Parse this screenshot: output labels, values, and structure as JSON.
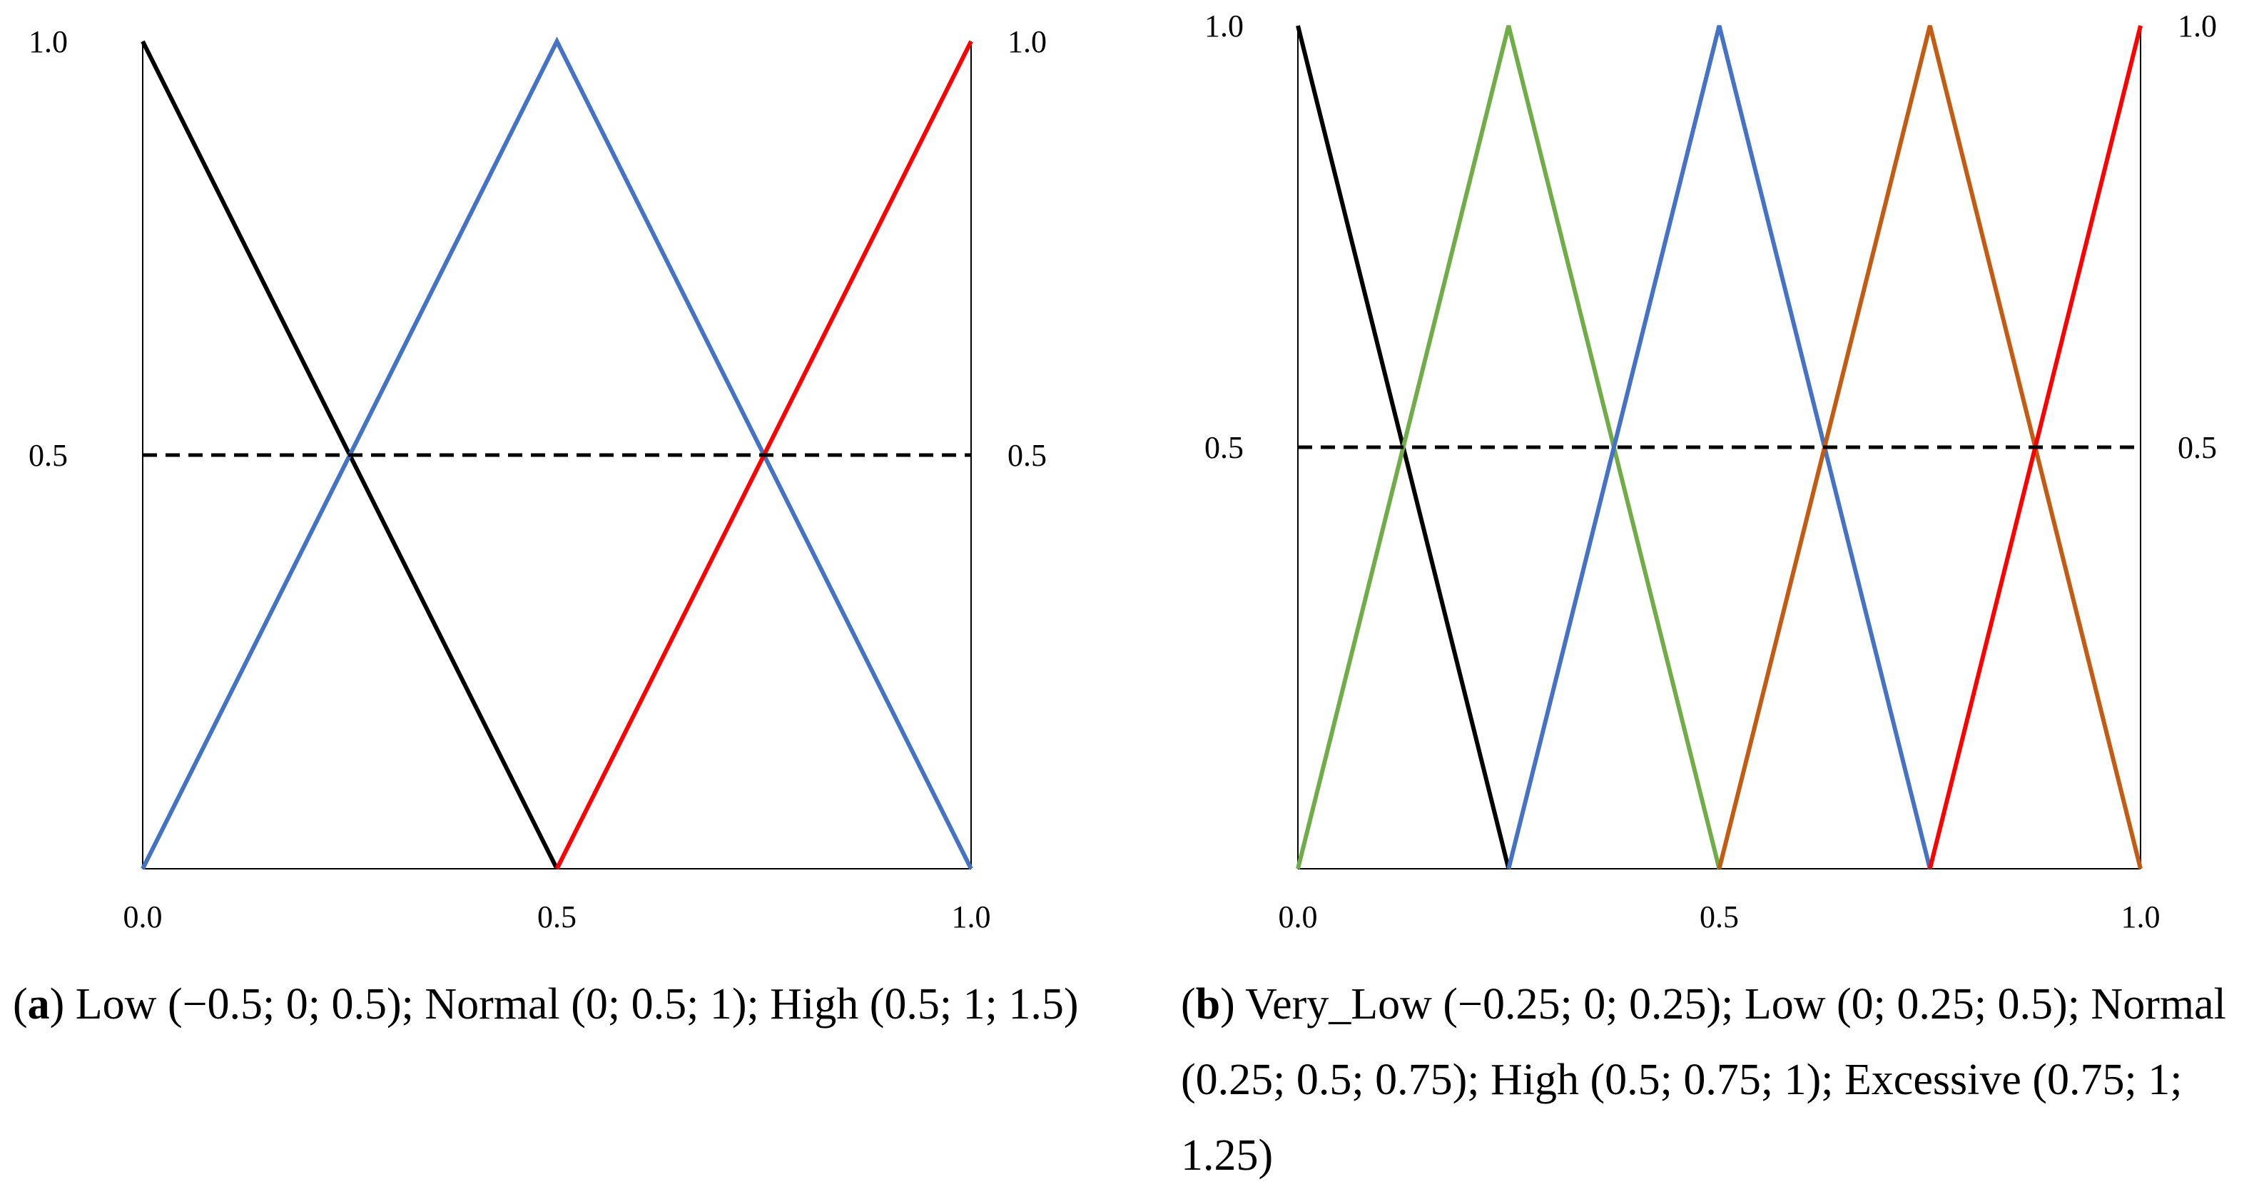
{
  "chart_data": [
    {
      "panel": "a",
      "type": "line",
      "x": [
        0.0,
        0.5,
        1.0
      ],
      "xlim": [
        0,
        1
      ],
      "ylim": [
        0,
        1
      ],
      "x_tick_labels": [
        "0.0",
        "0.5",
        "1.0"
      ],
      "y_tick_labels_left": [
        "1.0",
        "0.5"
      ],
      "y_tick_labels_right": [
        "1.0",
        "0.5"
      ],
      "reference_line": {
        "y": 0.5,
        "style": "dashed",
        "color": "#000000"
      },
      "series": [
        {
          "name": "Low",
          "params": [
            -0.5,
            0,
            0.5
          ],
          "color": "#000000",
          "points": [
            [
              0,
              1
            ],
            [
              0.5,
              0
            ]
          ]
        },
        {
          "name": "Normal",
          "params": [
            0,
            0.5,
            1
          ],
          "color": "#4472C4",
          "points": [
            [
              0,
              0
            ],
            [
              0.5,
              1
            ],
            [
              1,
              0
            ]
          ]
        },
        {
          "name": "High",
          "params": [
            0.5,
            1,
            1.5
          ],
          "color": "#FF0000",
          "points": [
            [
              0.5,
              0
            ],
            [
              1,
              1
            ]
          ]
        }
      ],
      "caption_letter": "a",
      "caption_text": ") Low (−0.5; 0; 0.5); Normal (0; 0.5; 1); High (0.5; 1; 1.5)"
    },
    {
      "panel": "b",
      "type": "line",
      "x": [
        0.0,
        0.5,
        1.0
      ],
      "xlim": [
        0,
        1
      ],
      "ylim": [
        0,
        1
      ],
      "x_tick_labels": [
        "0.0",
        "0.5",
        "1.0"
      ],
      "y_tick_labels_left": [
        "1.0",
        "0.5"
      ],
      "y_tick_labels_right": [
        "1.0",
        "0.5"
      ],
      "reference_line": {
        "y": 0.5,
        "style": "dashed",
        "color": "#000000"
      },
      "series": [
        {
          "name": "Very_Low",
          "params": [
            -0.25,
            0,
            0.25
          ],
          "color": "#000000",
          "points": [
            [
              0,
              1
            ],
            [
              0.25,
              0
            ]
          ]
        },
        {
          "name": "Low",
          "params": [
            0,
            0.25,
            0.5
          ],
          "color": "#70AD47",
          "points": [
            [
              0,
              0
            ],
            [
              0.25,
              1
            ],
            [
              0.5,
              0
            ]
          ]
        },
        {
          "name": "Normal",
          "params": [
            0.25,
            0.5,
            0.75
          ],
          "color": "#4472C4",
          "points": [
            [
              0.25,
              0
            ],
            [
              0.5,
              1
            ],
            [
              0.75,
              0
            ]
          ]
        },
        {
          "name": "High",
          "params": [
            0.5,
            0.75,
            1
          ],
          "color": "#C55A11",
          "points": [
            [
              0.5,
              0
            ],
            [
              0.75,
              1
            ],
            [
              1,
              0
            ]
          ]
        },
        {
          "name": "Excessive",
          "params": [
            0.75,
            1,
            1.25
          ],
          "color": "#FF0000",
          "points": [
            [
              0.75,
              0
            ],
            [
              1,
              1
            ]
          ]
        }
      ],
      "caption_letter": "b",
      "caption_text": ") Very_Low (−0.25; 0; 0.25); Low (0; 0.25; 0.5); Normal (0.25; 0.5; 0.75); High (0.5; 0.75; 1); Excessive (0.75; 1; 1.25)"
    }
  ]
}
